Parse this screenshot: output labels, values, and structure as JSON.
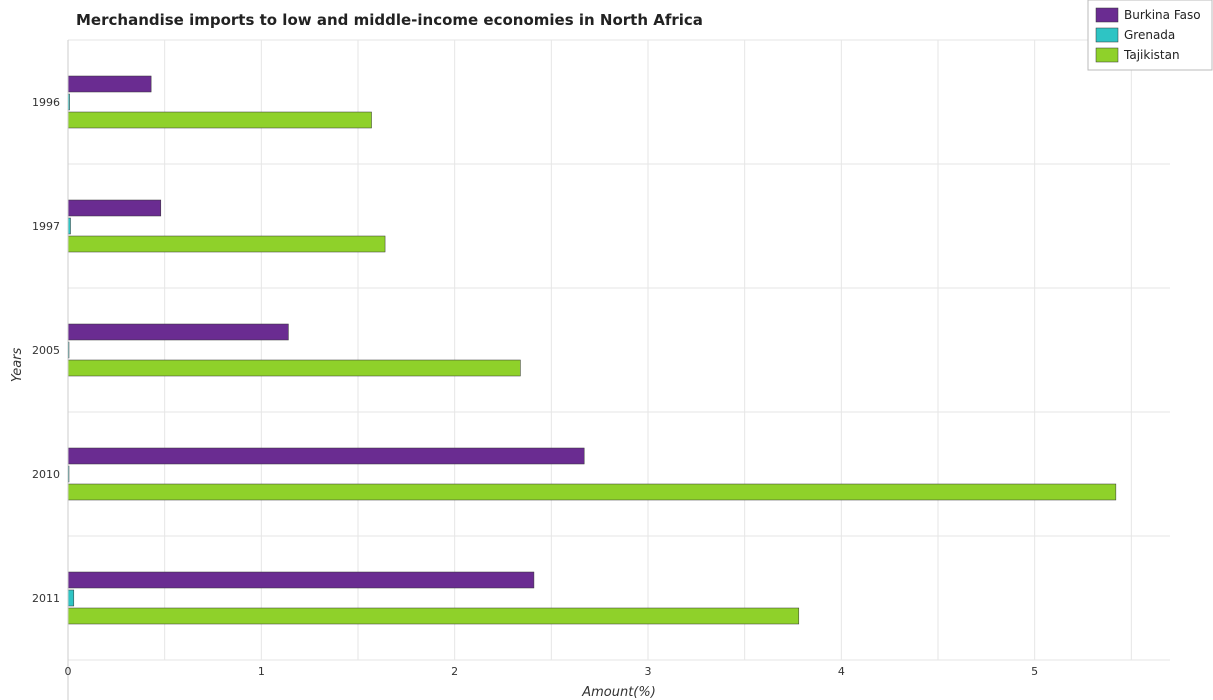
{
  "chart_data": {
    "type": "bar",
    "orientation": "horizontal",
    "title": "Merchandise imports to low and middle-income economies in North Africa",
    "xlabel": "Amount(%)",
    "ylabel": "Years",
    "categories": [
      "1996",
      "1997",
      "2005",
      "2010",
      "2011"
    ],
    "xlim": [
      0,
      5.7
    ],
    "xticks": [
      0,
      1,
      2,
      3,
      4,
      5
    ],
    "grid": true,
    "legend_position": "top-right",
    "series": [
      {
        "name": "Burkina Faso",
        "color": "#6a2c91",
        "values": [
          0.43,
          0.48,
          1.14,
          2.67,
          2.41
        ]
      },
      {
        "name": "Grenada",
        "color": "#2ec4c4",
        "values": [
          0.008,
          0.013,
          0.005,
          0.002,
          0.03
        ]
      },
      {
        "name": "Tajikistan",
        "color": "#8fd12a",
        "values": [
          1.57,
          1.64,
          2.34,
          5.42,
          3.78
        ]
      }
    ]
  }
}
